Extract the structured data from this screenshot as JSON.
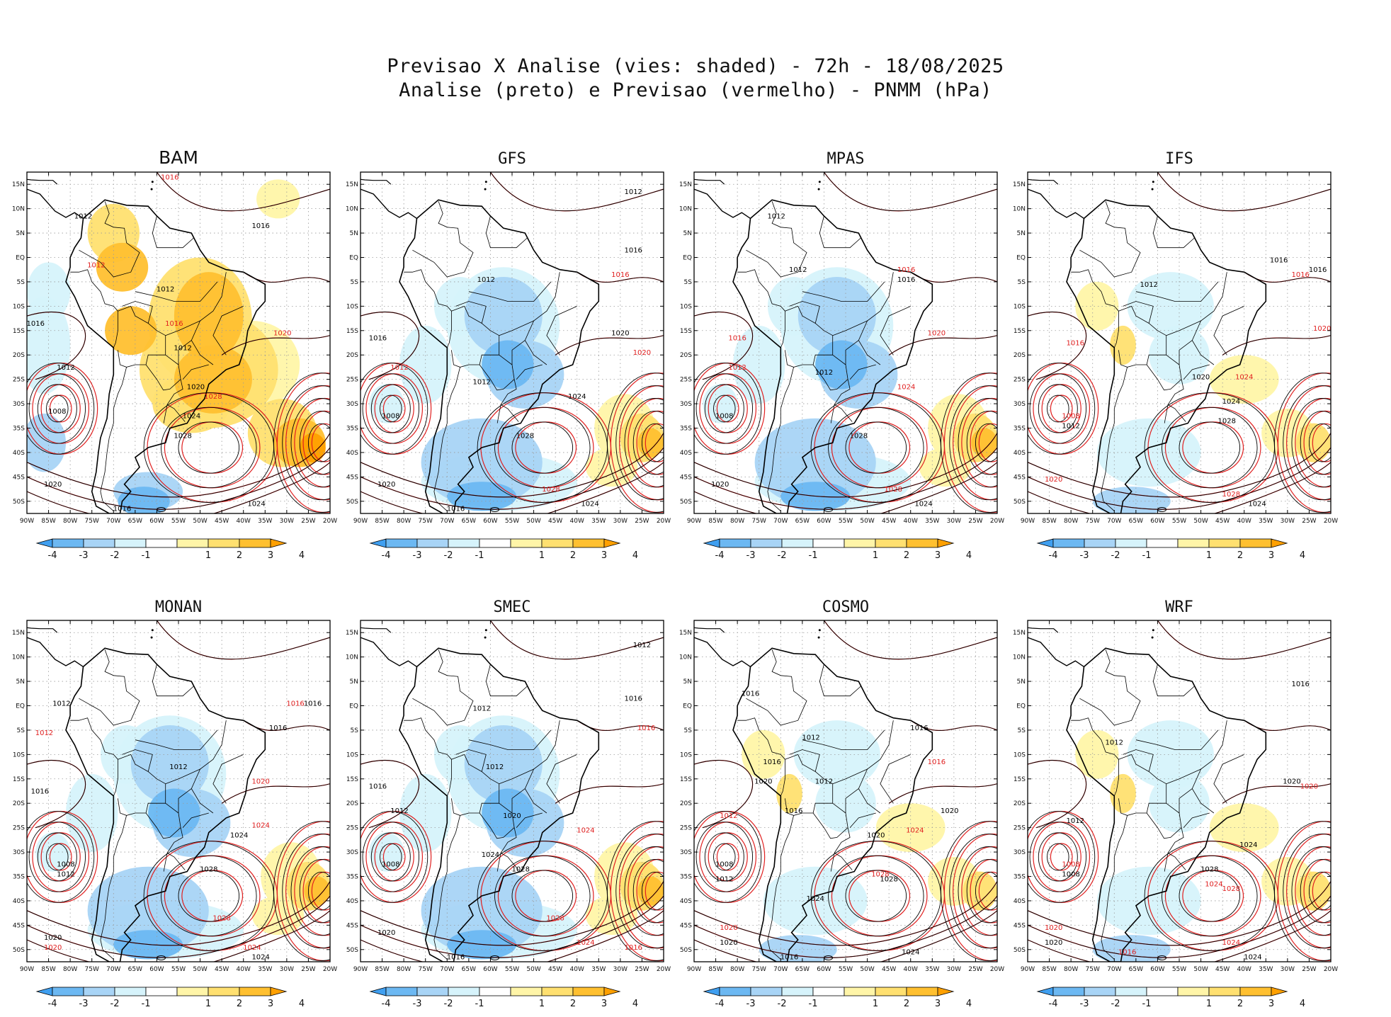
{
  "title_line1": "Previsao X Analise (vies: shaded) - 72h - 18/08/2025",
  "title_line2": "Analise (preto) e Previsao (vermelho) - PNMM (hPa)",
  "lat_labels": [
    "15N",
    "10N",
    "5N",
    "EQ",
    "5S",
    "10S",
    "15S",
    "20S",
    "25S",
    "30S",
    "35S",
    "40S",
    "45S",
    "50S"
  ],
  "lon_labels": [
    "90W",
    "85W",
    "80W",
    "75W",
    "70W",
    "65W",
    "60W",
    "55W",
    "50W",
    "45W",
    "40W",
    "35W",
    "30W",
    "25W",
    "20W"
  ],
  "colorbar": {
    "labels": [
      "-4",
      "-3",
      "-2",
      "-1",
      "1",
      "2",
      "3",
      "4"
    ],
    "colors": [
      "#3f9ff0",
      "#6cb8f2",
      "#a8d4f6",
      "#d6f3fb",
      "#ffffff",
      "#fff5a8",
      "#ffe070",
      "#ffc030",
      "#ffa000"
    ]
  },
  "contour_colors": {
    "analysis": "#000000",
    "forecast": "#e02020"
  },
  "panels": [
    {
      "name": "BAM",
      "bias": "positive",
      "labels": [
        {
          "t": "1016",
          "lon": -57,
          "lat": 16,
          "c": "red"
        },
        {
          "t": "1012",
          "lon": -77,
          "lat": 8,
          "c": "black"
        },
        {
          "t": "1016",
          "lon": -36,
          "lat": 6,
          "c": "black"
        },
        {
          "t": "1012",
          "lon": -74,
          "lat": -2,
          "c": "red"
        },
        {
          "t": "1012",
          "lon": -58,
          "lat": -7,
          "c": "black"
        },
        {
          "t": "1016",
          "lon": -88,
          "lat": -14,
          "c": "black"
        },
        {
          "t": "1016",
          "lon": -56,
          "lat": -14,
          "c": "red"
        },
        {
          "t": "1020",
          "lon": -31,
          "lat": -16,
          "c": "red"
        },
        {
          "t": "1012",
          "lon": -54,
          "lat": -19,
          "c": "black"
        },
        {
          "t": "1012",
          "lon": -81,
          "lat": -23,
          "c": "black"
        },
        {
          "t": "1020",
          "lon": -51,
          "lat": -27,
          "c": "black"
        },
        {
          "t": "1028",
          "lon": -47,
          "lat": -29,
          "c": "red"
        },
        {
          "t": "1008",
          "lon": -83,
          "lat": -32,
          "c": "black"
        },
        {
          "t": "1024",
          "lon": -52,
          "lat": -33,
          "c": "black"
        },
        {
          "t": "1028",
          "lon": -54,
          "lat": -37,
          "c": "black"
        },
        {
          "t": "1020",
          "lon": -84,
          "lat": -47,
          "c": "black"
        },
        {
          "t": "1024",
          "lon": -37,
          "lat": -51,
          "c": "black"
        },
        {
          "t": "1016",
          "lon": -68,
          "lat": -52,
          "c": "black"
        }
      ]
    },
    {
      "name": "GFS",
      "bias": "negative",
      "labels": [
        {
          "t": "1012",
          "lon": -27,
          "lat": 13,
          "c": "black"
        },
        {
          "t": "1016",
          "lon": -27,
          "lat": 1,
          "c": "black"
        },
        {
          "t": "1016",
          "lon": -30,
          "lat": -4,
          "c": "red"
        },
        {
          "t": "1012",
          "lon": -61,
          "lat": -5,
          "c": "black"
        },
        {
          "t": "1016",
          "lon": -86,
          "lat": -17,
          "c": "black"
        },
        {
          "t": "1020",
          "lon": -30,
          "lat": -16,
          "c": "black"
        },
        {
          "t": "1020",
          "lon": -25,
          "lat": -20,
          "c": "red"
        },
        {
          "t": "1012",
          "lon": -81,
          "lat": -23,
          "c": "red"
        },
        {
          "t": "1012",
          "lon": -62,
          "lat": -26,
          "c": "black"
        },
        {
          "t": "1024",
          "lon": -40,
          "lat": -29,
          "c": "black"
        },
        {
          "t": "1008",
          "lon": -83,
          "lat": -33,
          "c": "black"
        },
        {
          "t": "1028",
          "lon": -52,
          "lat": -37,
          "c": "black"
        },
        {
          "t": "1020",
          "lon": -84,
          "lat": -47,
          "c": "black"
        },
        {
          "t": "1028",
          "lon": -46,
          "lat": -48,
          "c": "red"
        },
        {
          "t": "1024",
          "lon": -37,
          "lat": -51,
          "c": "black"
        },
        {
          "t": "1016",
          "lon": -68,
          "lat": -52,
          "c": "black"
        }
      ]
    },
    {
      "name": "MPAS",
      "bias": "negative",
      "labels": [
        {
          "t": "1012",
          "lon": -71,
          "lat": 8,
          "c": "black"
        },
        {
          "t": "1016",
          "lon": -41,
          "lat": -3,
          "c": "red"
        },
        {
          "t": "1016",
          "lon": -41,
          "lat": -5,
          "c": "black"
        },
        {
          "t": "1012",
          "lon": -66,
          "lat": -3,
          "c": "black"
        },
        {
          "t": "1016",
          "lon": -80,
          "lat": -17,
          "c": "red"
        },
        {
          "t": "1020",
          "lon": -34,
          "lat": -16,
          "c": "red"
        },
        {
          "t": "1012",
          "lon": -80,
          "lat": -23,
          "c": "red"
        },
        {
          "t": "1012",
          "lon": -60,
          "lat": -24,
          "c": "black"
        },
        {
          "t": "1024",
          "lon": -41,
          "lat": -27,
          "c": "red"
        },
        {
          "t": "1008",
          "lon": -83,
          "lat": -33,
          "c": "black"
        },
        {
          "t": "1028",
          "lon": -52,
          "lat": -37,
          "c": "black"
        },
        {
          "t": "1020",
          "lon": -84,
          "lat": -47,
          "c": "black"
        },
        {
          "t": "1028",
          "lon": -44,
          "lat": -48,
          "c": "red"
        },
        {
          "t": "1024",
          "lon": -37,
          "lat": -51,
          "c": "black"
        }
      ]
    },
    {
      "name": "IFS",
      "bias": "mixed",
      "labels": [
        {
          "t": "1016",
          "lon": -32,
          "lat": -1,
          "c": "black"
        },
        {
          "t": "1016",
          "lon": -23,
          "lat": -3,
          "c": "black"
        },
        {
          "t": "1016",
          "lon": -27,
          "lat": -4,
          "c": "red"
        },
        {
          "t": "1012",
          "lon": -62,
          "lat": -6,
          "c": "black"
        },
        {
          "t": "1020",
          "lon": -22,
          "lat": -15,
          "c": "red"
        },
        {
          "t": "1016",
          "lon": -79,
          "lat": -18,
          "c": "red"
        },
        {
          "t": "1020",
          "lon": -50,
          "lat": -25,
          "c": "black"
        },
        {
          "t": "1024",
          "lon": -40,
          "lat": -25,
          "c": "red"
        },
        {
          "t": "1024",
          "lon": -43,
          "lat": -30,
          "c": "black"
        },
        {
          "t": "1008",
          "lon": -80,
          "lat": -33,
          "c": "red"
        },
        {
          "t": "1012",
          "lon": -80,
          "lat": -35,
          "c": "black"
        },
        {
          "t": "1028",
          "lon": -44,
          "lat": -34,
          "c": "black"
        },
        {
          "t": "1020",
          "lon": -84,
          "lat": -46,
          "c": "red"
        },
        {
          "t": "1028",
          "lon": -43,
          "lat": -49,
          "c": "red"
        },
        {
          "t": "1024",
          "lon": -37,
          "lat": -51,
          "c": "black"
        }
      ]
    },
    {
      "name": "MONAN",
      "bias": "negative",
      "labels": [
        {
          "t": "1012",
          "lon": -82,
          "lat": 0,
          "c": "black"
        },
        {
          "t": "1016",
          "lon": -28,
          "lat": 0,
          "c": "red"
        },
        {
          "t": "1016",
          "lon": -24,
          "lat": 0,
          "c": "black"
        },
        {
          "t": "1016",
          "lon": -32,
          "lat": -5,
          "c": "black"
        },
        {
          "t": "1012",
          "lon": -86,
          "lat": -6,
          "c": "red"
        },
        {
          "t": "1012",
          "lon": -55,
          "lat": -13,
          "c": "black"
        },
        {
          "t": "1016",
          "lon": -87,
          "lat": -18,
          "c": "black"
        },
        {
          "t": "1020",
          "lon": -36,
          "lat": -16,
          "c": "red"
        },
        {
          "t": "1024",
          "lon": -36,
          "lat": -25,
          "c": "red"
        },
        {
          "t": "1024",
          "lon": -41,
          "lat": -27,
          "c": "black"
        },
        {
          "t": "1008",
          "lon": -81,
          "lat": -33,
          "c": "black"
        },
        {
          "t": "1012",
          "lon": -81,
          "lat": -35,
          "c": "black"
        },
        {
          "t": "1028",
          "lon": -48,
          "lat": -34,
          "c": "black"
        },
        {
          "t": "1028",
          "lon": -45,
          "lat": -44,
          "c": "red"
        },
        {
          "t": "1020",
          "lon": -84,
          "lat": -48,
          "c": "black"
        },
        {
          "t": "1020",
          "lon": -84,
          "lat": -50,
          "c": "red"
        },
        {
          "t": "1024",
          "lon": -38,
          "lat": -50,
          "c": "red"
        },
        {
          "t": "1024",
          "lon": -36,
          "lat": -52,
          "c": "black"
        }
      ]
    },
    {
      "name": "SMEC",
      "bias": "negative",
      "labels": [
        {
          "t": "1012",
          "lon": -25,
          "lat": 12,
          "c": "black"
        },
        {
          "t": "1016",
          "lon": -27,
          "lat": 1,
          "c": "black"
        },
        {
          "t": "1016",
          "lon": -24,
          "lat": -5,
          "c": "red"
        },
        {
          "t": "1012",
          "lon": -62,
          "lat": -1,
          "c": "black"
        },
        {
          "t": "1012",
          "lon": -59,
          "lat": -13,
          "c": "black"
        },
        {
          "t": "1016",
          "lon": -86,
          "lat": -17,
          "c": "black"
        },
        {
          "t": "1012",
          "lon": -81,
          "lat": -22,
          "c": "black"
        },
        {
          "t": "1020",
          "lon": -55,
          "lat": -23,
          "c": "black"
        },
        {
          "t": "1024",
          "lon": -38,
          "lat": -26,
          "c": "red"
        },
        {
          "t": "1024",
          "lon": -60,
          "lat": -31,
          "c": "black"
        },
        {
          "t": "1008",
          "lon": -83,
          "lat": -33,
          "c": "black"
        },
        {
          "t": "1028",
          "lon": -53,
          "lat": -34,
          "c": "black"
        },
        {
          "t": "1028",
          "lon": -45,
          "lat": -44,
          "c": "red"
        },
        {
          "t": "1020",
          "lon": -84,
          "lat": -47,
          "c": "black"
        },
        {
          "t": "1024",
          "lon": -38,
          "lat": -49,
          "c": "red"
        },
        {
          "t": "1016",
          "lon": -27,
          "lat": -50,
          "c": "red"
        },
        {
          "t": "1016",
          "lon": -68,
          "lat": -52,
          "c": "black"
        }
      ]
    },
    {
      "name": "COSMO",
      "bias": "mixed",
      "labels": [
        {
          "t": "1016",
          "lon": -77,
          "lat": 2,
          "c": "black"
        },
        {
          "t": "1012",
          "lon": -63,
          "lat": -7,
          "c": "black"
        },
        {
          "t": "1016",
          "lon": -38,
          "lat": -5,
          "c": "black"
        },
        {
          "t": "1016",
          "lon": -34,
          "lat": -12,
          "c": "red"
        },
        {
          "t": "1016",
          "lon": -72,
          "lat": -12,
          "c": "black"
        },
        {
          "t": "1012",
          "lon": -60,
          "lat": -16,
          "c": "black"
        },
        {
          "t": "1020",
          "lon": -74,
          "lat": -16,
          "c": "black"
        },
        {
          "t": "1020",
          "lon": -31,
          "lat": -22,
          "c": "black"
        },
        {
          "t": "1012",
          "lon": -82,
          "lat": -23,
          "c": "red"
        },
        {
          "t": "1016",
          "lon": -67,
          "lat": -22,
          "c": "black"
        },
        {
          "t": "1020",
          "lon": -48,
          "lat": -27,
          "c": "black"
        },
        {
          "t": "1024",
          "lon": -39,
          "lat": -26,
          "c": "red"
        },
        {
          "t": "1008",
          "lon": -83,
          "lat": -33,
          "c": "black"
        },
        {
          "t": "1012",
          "lon": -83,
          "lat": -36,
          "c": "black"
        },
        {
          "t": "1028",
          "lon": -47,
          "lat": -35,
          "c": "red"
        },
        {
          "t": "1028",
          "lon": -45,
          "lat": -36,
          "c": "black"
        },
        {
          "t": "1024",
          "lon": -62,
          "lat": -40,
          "c": "black"
        },
        {
          "t": "1020",
          "lon": -82,
          "lat": -46,
          "c": "red"
        },
        {
          "t": "1020",
          "lon": -82,
          "lat": -49,
          "c": "black"
        },
        {
          "t": "1024",
          "lon": -40,
          "lat": -51,
          "c": "black"
        },
        {
          "t": "1016",
          "lon": -68,
          "lat": -52,
          "c": "black"
        }
      ]
    },
    {
      "name": "WRF",
      "bias": "mixed",
      "labels": [
        {
          "t": "1016",
          "lon": -27,
          "lat": 4,
          "c": "black"
        },
        {
          "t": "1012",
          "lon": -70,
          "lat": -8,
          "c": "black"
        },
        {
          "t": "1020",
          "lon": -29,
          "lat": -16,
          "c": "black"
        },
        {
          "t": "1020",
          "lon": -25,
          "lat": -17,
          "c": "red"
        },
        {
          "t": "1012",
          "lon": -79,
          "lat": -24,
          "c": "black"
        },
        {
          "t": "1024",
          "lon": -39,
          "lat": -29,
          "c": "black"
        },
        {
          "t": "1008",
          "lon": -80,
          "lat": -33,
          "c": "red"
        },
        {
          "t": "1008",
          "lon": -80,
          "lat": -35,
          "c": "black"
        },
        {
          "t": "1028",
          "lon": -48,
          "lat": -34,
          "c": "black"
        },
        {
          "t": "1028",
          "lon": -43,
          "lat": -38,
          "c": "red"
        },
        {
          "t": "1024",
          "lon": -47,
          "lat": -37,
          "c": "red"
        },
        {
          "t": "1020",
          "lon": -84,
          "lat": -46,
          "c": "red"
        },
        {
          "t": "1020",
          "lon": -84,
          "lat": -49,
          "c": "black"
        },
        {
          "t": "1024",
          "lon": -43,
          "lat": -49,
          "c": "red"
        },
        {
          "t": "1024",
          "lon": -38,
          "lat": -52,
          "c": "black"
        },
        {
          "t": "1016",
          "lon": -67,
          "lat": -51,
          "c": "red"
        }
      ]
    }
  ]
}
